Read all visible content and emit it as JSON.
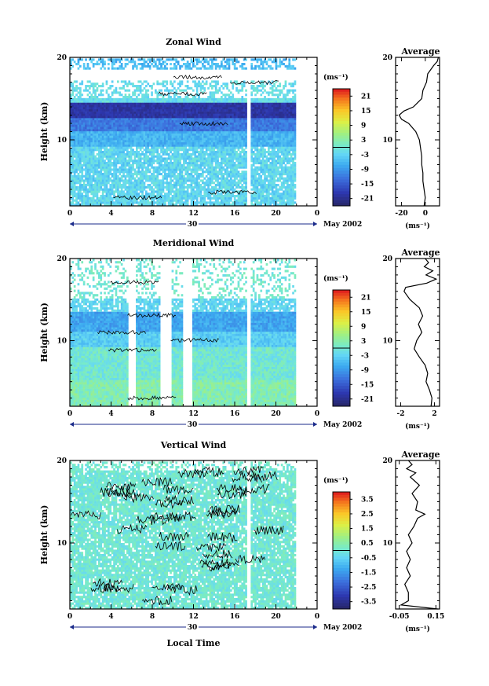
{
  "figure": {
    "date_label": "May 2002",
    "day_label": "30",
    "xlabel_bottom": "Local Time",
    "ylabel": "Height (km)"
  },
  "chart_data": [
    {
      "type": "heatmap",
      "title": "Zonal Wind",
      "xlabel": "",
      "ylabel": "Height (km)",
      "x_ticks": [
        "0",
        "4",
        "8",
        "12",
        "16",
        "20",
        "0"
      ],
      "xlim": [
        0,
        24
      ],
      "y_ticks": [
        "10",
        "20"
      ],
      "ylim": [
        2,
        20
      ],
      "colorbar": {
        "unit": "(ms⁻¹)",
        "ticks": [
          "21",
          "15",
          "9",
          "3",
          "-3",
          "-9",
          "-15",
          "-21"
        ],
        "range": [
          -24,
          24
        ]
      },
      "gaps": [
        [
          17.1,
          17.5
        ]
      ],
      "average_profile": {
        "title": "Average",
        "xlabel": "(ms⁻¹)",
        "x_ticks": [
          "-20",
          "0"
        ],
        "xlim": [
          -25,
          12
        ],
        "height": [
          2,
          3,
          4,
          5,
          6,
          7,
          8,
          9,
          10,
          11,
          12,
          12.5,
          13,
          13.5,
          14,
          15,
          16,
          17,
          18,
          19,
          19.5,
          20
        ],
        "value": [
          -1,
          0,
          -1,
          -2,
          -2,
          -3,
          -3,
          -4,
          -5,
          -8,
          -14,
          -20,
          -22,
          -18,
          -10,
          -3,
          -2,
          1,
          2,
          7,
          10,
          11
        ]
      }
    },
    {
      "type": "heatmap",
      "title": "Meridional Wind",
      "xlabel": "",
      "ylabel": "Height (km)",
      "x_ticks": [
        "0",
        "4",
        "8",
        "12",
        "16",
        "20",
        "0"
      ],
      "xlim": [
        0,
        24
      ],
      "y_ticks": [
        "10",
        "20"
      ],
      "ylim": [
        2,
        20
      ],
      "colorbar": {
        "unit": "(ms⁻¹)",
        "ticks": [
          "21",
          "15",
          "9",
          "3",
          "-3",
          "-9",
          "-15",
          "-21"
        ],
        "range": [
          -24,
          24
        ]
      },
      "gaps": [
        [
          5.6,
          6.3
        ],
        [
          8.6,
          9.8
        ],
        [
          10.8,
          11.8
        ],
        [
          17.1,
          17.5
        ]
      ],
      "average_profile": {
        "title": "Average",
        "xlabel": "(ms⁻¹)",
        "x_ticks": [
          "-2",
          "2"
        ],
        "xlim": [
          -2.6,
          2.6
        ],
        "height": [
          2,
          3,
          4,
          5,
          6,
          7,
          8,
          9,
          10,
          11,
          12,
          13,
          14,
          15,
          16,
          16.5,
          17,
          17.5,
          18,
          18.5,
          19,
          19.5,
          20
        ],
        "value": [
          1.6,
          1.7,
          1.4,
          1.0,
          1.2,
          0.9,
          0.2,
          -0.4,
          -0.1,
          0.5,
          0.1,
          0.6,
          0.2,
          -0.9,
          -1.6,
          -1.4,
          1.1,
          2.2,
          1.0,
          1.8,
          0.8,
          1.3,
          0.9
        ]
      }
    },
    {
      "type": "heatmap",
      "title": "Vertical Wind",
      "xlabel": "Local Time",
      "ylabel": "Height (km)",
      "x_ticks": [
        "0",
        "4",
        "8",
        "12",
        "16",
        "20",
        "0"
      ],
      "xlim": [
        0,
        24
      ],
      "y_ticks": [
        "10",
        "20"
      ],
      "ylim": [
        2,
        20
      ],
      "colorbar": {
        "unit": "(ms⁻¹)",
        "ticks": [
          "3.5",
          "2.5",
          "1.5",
          "0.5",
          "-0.5",
          "-1.5",
          "-2.5",
          "-3.5"
        ],
        "range": [
          -4,
          4
        ]
      },
      "gaps": [
        [
          17.1,
          17.5
        ]
      ],
      "average_profile": {
        "title": "Average",
        "xlabel": "(ms⁻¹)",
        "x_ticks": [
          "-0.05",
          "0.15"
        ],
        "xlim": [
          -0.07,
          0.17
        ],
        "height": [
          2,
          2.5,
          3,
          4,
          5,
          6,
          7,
          8,
          9,
          10,
          11,
          12,
          13,
          13.5,
          14,
          15,
          16,
          17,
          18,
          18.5,
          19,
          19.5,
          20
        ],
        "value": [
          0.16,
          -0.04,
          0.0,
          0.0,
          -0.02,
          0.01,
          -0.01,
          0.01,
          -0.01,
          0.02,
          0.0,
          0.03,
          0.05,
          0.09,
          0.04,
          0.05,
          0.02,
          0.06,
          0.01,
          0.04,
          -0.01,
          0.02,
          0.0
        ]
      }
    }
  ]
}
